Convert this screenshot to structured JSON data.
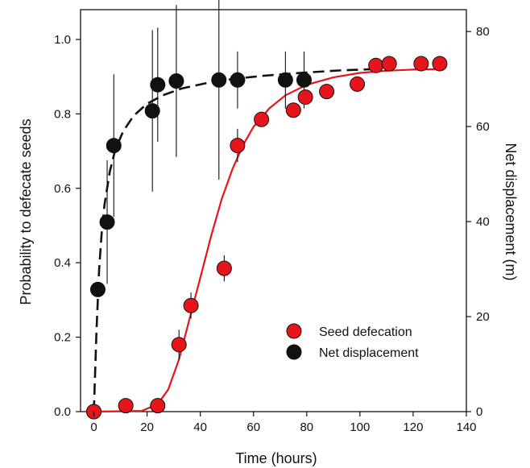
{
  "chart_data": {
    "type": "scatter",
    "title": "",
    "xlabel": "Time (hours)",
    "ylabel_left": "Probability to defecate seeds",
    "ylabel_right": "Net displacement (m)",
    "xlim": [
      -5,
      140
    ],
    "ylim_left": [
      0,
      1.08
    ],
    "ylim_right": [
      0,
      84.6
    ],
    "x_ticks": [
      "0",
      "20",
      "40",
      "60",
      "80",
      "100",
      "120",
      "140"
    ],
    "y_left_ticks": [
      "0.0",
      "0.2",
      "0.4",
      "0.6",
      "0.8",
      "1.0"
    ],
    "y_right_ticks": [
      "0",
      "20",
      "40",
      "60",
      "80"
    ],
    "legend_position": "lower-right",
    "colors": {
      "seed": "#e8141b",
      "net": "#111111"
    },
    "series": [
      {
        "name": "Seed defecation",
        "axis": "left",
        "marker": "circle",
        "color": "#e8141b",
        "points": [
          {
            "x": 0,
            "y": 0.0
          },
          {
            "x": 12,
            "y": 0.016
          },
          {
            "x": 24,
            "y": 0.016
          },
          {
            "x": 32,
            "y": 0.18,
            "err": 0.04
          },
          {
            "x": 36.5,
            "y": 0.285,
            "err": 0.035
          },
          {
            "x": 49,
            "y": 0.385,
            "err": 0.035
          },
          {
            "x": 54,
            "y": 0.715,
            "err": 0.045
          },
          {
            "x": 63,
            "y": 0.785,
            "err": 0.02
          },
          {
            "x": 75,
            "y": 0.81,
            "err": 0.02
          },
          {
            "x": 79.5,
            "y": 0.845,
            "err": 0.02
          },
          {
            "x": 87.5,
            "y": 0.86
          },
          {
            "x": 99,
            "y": 0.88
          },
          {
            "x": 106,
            "y": 0.93
          },
          {
            "x": 111,
            "y": 0.935
          },
          {
            "x": 123,
            "y": 0.935
          },
          {
            "x": 130,
            "y": 0.935
          }
        ],
        "fit_curve": [
          {
            "x": 0,
            "y": 0.0
          },
          {
            "x": 18,
            "y": 0.002
          },
          {
            "x": 24,
            "y": 0.02
          },
          {
            "x": 28,
            "y": 0.06
          },
          {
            "x": 32,
            "y": 0.14
          },
          {
            "x": 36,
            "y": 0.25
          },
          {
            "x": 40,
            "y": 0.36
          },
          {
            "x": 44,
            "y": 0.47
          },
          {
            "x": 48,
            "y": 0.57
          },
          {
            "x": 52,
            "y": 0.65
          },
          {
            "x": 56,
            "y": 0.715
          },
          {
            "x": 60,
            "y": 0.765
          },
          {
            "x": 66,
            "y": 0.815
          },
          {
            "x": 72,
            "y": 0.85
          },
          {
            "x": 80,
            "y": 0.878
          },
          {
            "x": 90,
            "y": 0.898
          },
          {
            "x": 100,
            "y": 0.91
          },
          {
            "x": 110,
            "y": 0.916
          },
          {
            "x": 120,
            "y": 0.919
          },
          {
            "x": 130,
            "y": 0.92
          }
        ]
      },
      {
        "name": "Net displacement",
        "axis": "right",
        "marker": "circle",
        "color": "#111111",
        "points": [
          {
            "x": 0,
            "y": 0.0
          },
          {
            "x": 1.5,
            "y": 25.7
          },
          {
            "x": 5,
            "y": 39.9,
            "err": 13
          },
          {
            "x": 7.5,
            "y": 56.0,
            "err": 15
          },
          {
            "x": 22,
            "y": 63.3,
            "err": 17
          },
          {
            "x": 24,
            "y": 68.8,
            "err": 12
          },
          {
            "x": 31,
            "y": 69.6,
            "err": 16
          },
          {
            "x": 47,
            "y": 69.8,
            "err": 21
          },
          {
            "x": 54,
            "y": 69.8,
            "err": 6
          },
          {
            "x": 72,
            "y": 69.8,
            "err": 6
          },
          {
            "x": 79,
            "y": 69.8,
            "err": 6
          }
        ],
        "fit_curve": [
          {
            "x": 0,
            "y": 0
          },
          {
            "x": 1,
            "y": 17
          },
          {
            "x": 2,
            "y": 30
          },
          {
            "x": 3,
            "y": 38
          },
          {
            "x": 4,
            "y": 43.5
          },
          {
            "x": 6,
            "y": 50.5
          },
          {
            "x": 8,
            "y": 55
          },
          {
            "x": 11,
            "y": 59
          },
          {
            "x": 15,
            "y": 62.3
          },
          {
            "x": 20,
            "y": 64.8
          },
          {
            "x": 26,
            "y": 66.6
          },
          {
            "x": 33,
            "y": 68
          },
          {
            "x": 42,
            "y": 69.1
          },
          {
            "x": 52,
            "y": 70
          },
          {
            "x": 64,
            "y": 70.7
          },
          {
            "x": 78,
            "y": 71.3
          },
          {
            "x": 92,
            "y": 71.8
          },
          {
            "x": 106,
            "y": 72.1
          }
        ]
      }
    ]
  }
}
